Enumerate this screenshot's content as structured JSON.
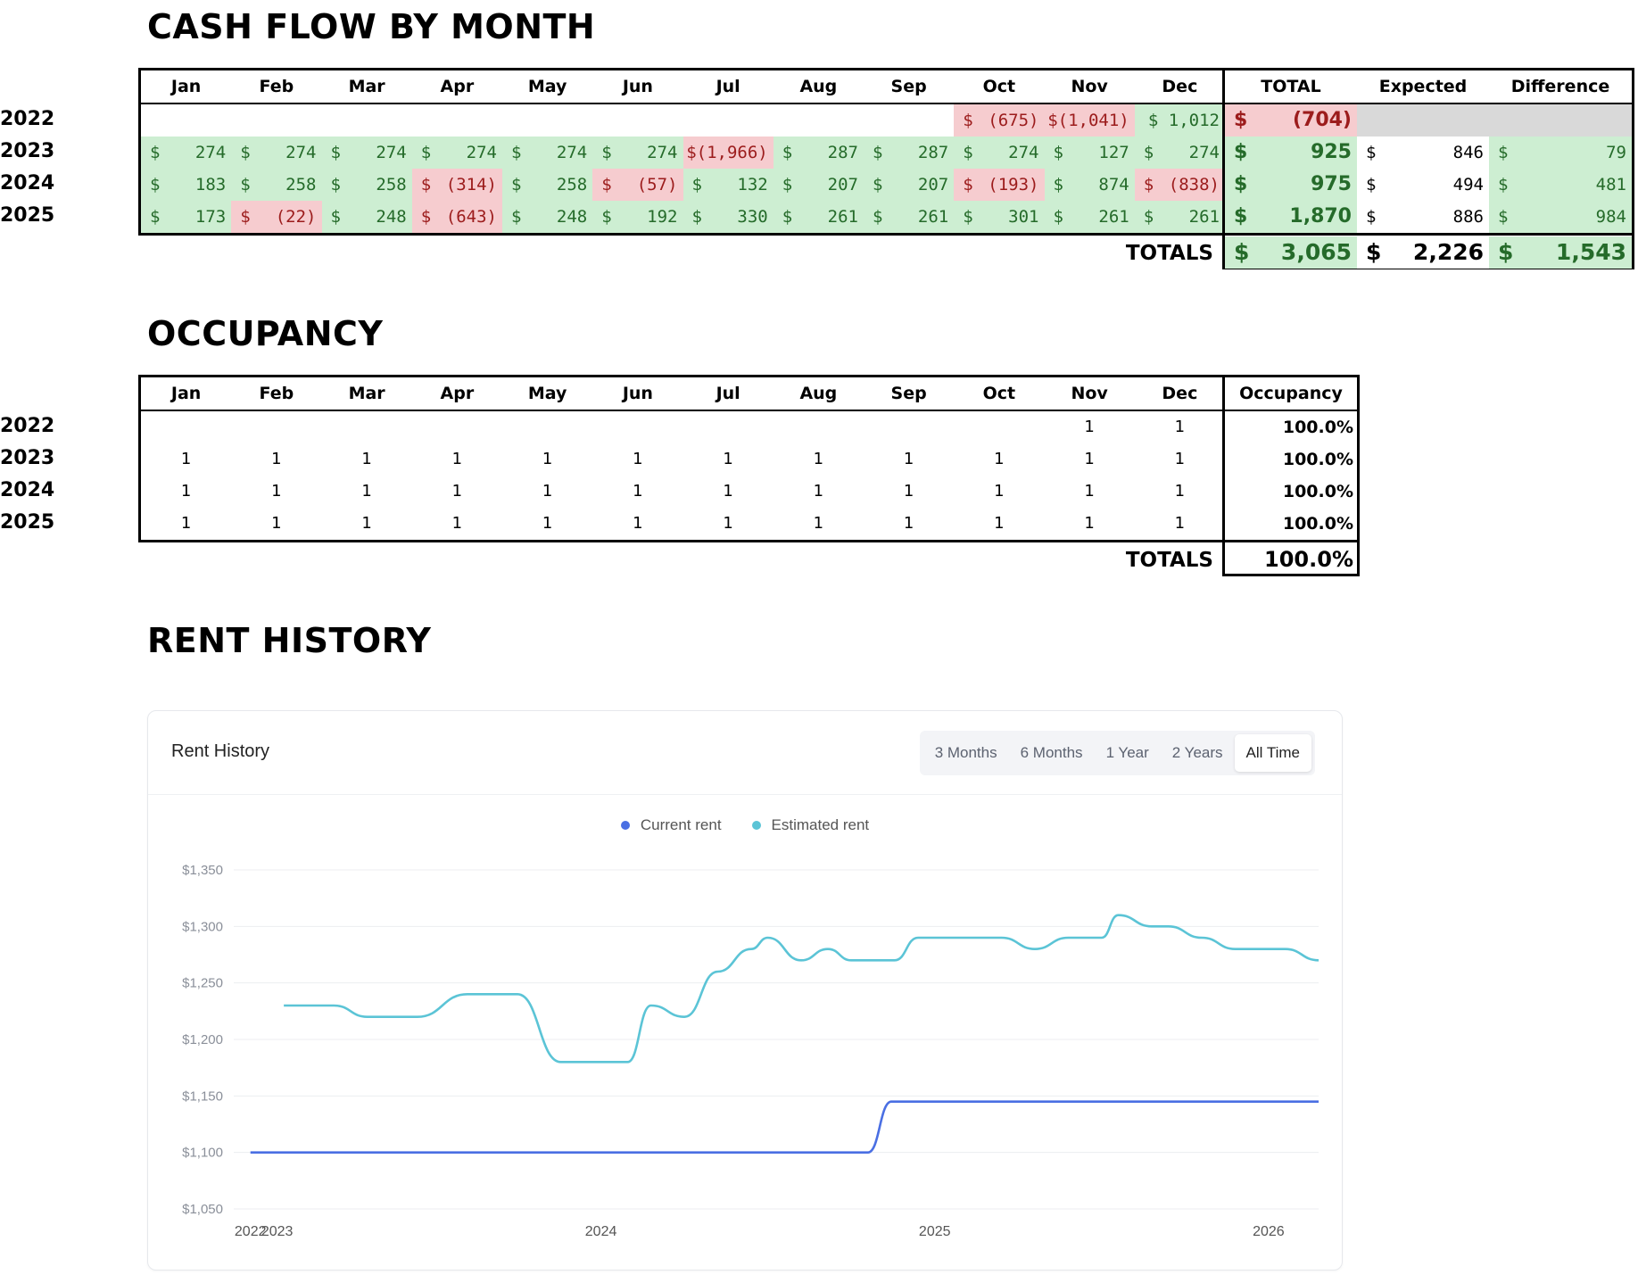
{
  "cashflow": {
    "title": "CASH FLOW BY MONTH",
    "months": [
      "Jan",
      "Feb",
      "Mar",
      "Apr",
      "May",
      "Jun",
      "Jul",
      "Aug",
      "Sep",
      "Oct",
      "Nov",
      "Dec"
    ],
    "summary_headers": [
      "TOTAL",
      "Expected",
      "Difference"
    ],
    "rows": [
      {
        "year": "2022",
        "cells": [
          null,
          null,
          null,
          null,
          null,
          null,
          null,
          null,
          null,
          {
            "sym": "$",
            "amt": "(675)",
            "s": "neg"
          },
          {
            "sym": "",
            "amt": "$(1,041)",
            "s": "neg"
          },
          {
            "sym": "",
            "amt": "$ 1,012",
            "s": "pos"
          }
        ],
        "total": {
          "sym": "$",
          "amt": "(704)",
          "s": "neg"
        },
        "expected": {
          "sym": "",
          "amt": "",
          "s": "grey"
        },
        "difference": {
          "sym": "",
          "amt": "",
          "s": "grey"
        }
      },
      {
        "year": "2023",
        "cells": [
          {
            "sym": "$",
            "amt": "274",
            "s": "pos"
          },
          {
            "sym": "$",
            "amt": "274",
            "s": "pos"
          },
          {
            "sym": "$",
            "amt": "274",
            "s": "pos"
          },
          {
            "sym": "$",
            "amt": "274",
            "s": "pos"
          },
          {
            "sym": "$",
            "amt": "274",
            "s": "pos"
          },
          {
            "sym": "$",
            "amt": "274",
            "s": "pos"
          },
          {
            "sym": "",
            "amt": "$(1,966)",
            "s": "neg"
          },
          {
            "sym": "$",
            "amt": "287",
            "s": "pos"
          },
          {
            "sym": "$",
            "amt": "287",
            "s": "pos"
          },
          {
            "sym": "$",
            "amt": "274",
            "s": "pos"
          },
          {
            "sym": "$",
            "amt": "127",
            "s": "pos"
          },
          {
            "sym": "$",
            "amt": "274",
            "s": "pos"
          }
        ],
        "total": {
          "sym": "$",
          "amt": "925",
          "s": "pos"
        },
        "expected": {
          "sym": "$",
          "amt": "846",
          "s": "plain"
        },
        "difference": {
          "sym": "$",
          "amt": "79",
          "s": "pos"
        }
      },
      {
        "year": "2024",
        "cells": [
          {
            "sym": "$",
            "amt": "183",
            "s": "pos"
          },
          {
            "sym": "$",
            "amt": "258",
            "s": "pos"
          },
          {
            "sym": "$",
            "amt": "258",
            "s": "pos"
          },
          {
            "sym": "$",
            "amt": "(314)",
            "s": "neg"
          },
          {
            "sym": "$",
            "amt": "258",
            "s": "pos"
          },
          {
            "sym": "$",
            "amt": "(57)",
            "s": "neg"
          },
          {
            "sym": "$",
            "amt": "132",
            "s": "pos"
          },
          {
            "sym": "$",
            "amt": "207",
            "s": "pos"
          },
          {
            "sym": "$",
            "amt": "207",
            "s": "pos"
          },
          {
            "sym": "$",
            "amt": "(193)",
            "s": "neg"
          },
          {
            "sym": "$",
            "amt": "874",
            "s": "pos"
          },
          {
            "sym": "$",
            "amt": "(838)",
            "s": "neg"
          }
        ],
        "total": {
          "sym": "$",
          "amt": "975",
          "s": "pos"
        },
        "expected": {
          "sym": "$",
          "amt": "494",
          "s": "plain"
        },
        "difference": {
          "sym": "$",
          "amt": "481",
          "s": "pos"
        }
      },
      {
        "year": "2025",
        "cells": [
          {
            "sym": "$",
            "amt": "173",
            "s": "pos"
          },
          {
            "sym": "$",
            "amt": "(22)",
            "s": "neg"
          },
          {
            "sym": "$",
            "amt": "248",
            "s": "pos"
          },
          {
            "sym": "$",
            "amt": "(643)",
            "s": "neg"
          },
          {
            "sym": "$",
            "amt": "248",
            "s": "pos"
          },
          {
            "sym": "$",
            "amt": "192",
            "s": "pos"
          },
          {
            "sym": "$",
            "amt": "330",
            "s": "pos"
          },
          {
            "sym": "$",
            "amt": "261",
            "s": "pos"
          },
          {
            "sym": "$",
            "amt": "261",
            "s": "pos"
          },
          {
            "sym": "$",
            "amt": "301",
            "s": "pos"
          },
          {
            "sym": "$",
            "amt": "261",
            "s": "pos"
          },
          {
            "sym": "$",
            "amt": "261",
            "s": "pos"
          }
        ],
        "total": {
          "sym": "$",
          "amt": "1,870",
          "s": "pos"
        },
        "expected": {
          "sym": "$",
          "amt": "886",
          "s": "plain"
        },
        "difference": {
          "sym": "$",
          "amt": "984",
          "s": "pos"
        }
      }
    ],
    "totals_label": "TOTALS",
    "totals": {
      "total": {
        "sym": "$",
        "amt": "3,065"
      },
      "expected": {
        "sym": "$",
        "amt": "2,226"
      },
      "difference": {
        "sym": "$",
        "amt": "1,543"
      }
    }
  },
  "occupancy": {
    "title": "OCCUPANCY",
    "months": [
      "Jan",
      "Feb",
      "Mar",
      "Apr",
      "May",
      "Jun",
      "Jul",
      "Aug",
      "Sep",
      "Oct",
      "Nov",
      "Dec"
    ],
    "summary_header": "Occupancy",
    "rows": [
      {
        "year": "2022",
        "values": [
          "",
          "",
          "",
          "",
          "",
          "",
          "",
          "",
          "",
          "",
          "1",
          "1"
        ],
        "pct": "100.0%"
      },
      {
        "year": "2023",
        "values": [
          "1",
          "1",
          "1",
          "1",
          "1",
          "1",
          "1",
          "1",
          "1",
          "1",
          "1",
          "1"
        ],
        "pct": "100.0%"
      },
      {
        "year": "2024",
        "values": [
          "1",
          "1",
          "1",
          "1",
          "1",
          "1",
          "1",
          "1",
          "1",
          "1",
          "1",
          "1"
        ],
        "pct": "100.0%"
      },
      {
        "year": "2025",
        "values": [
          "1",
          "1",
          "1",
          "1",
          "1",
          "1",
          "1",
          "1",
          "1",
          "1",
          "1",
          "1"
        ],
        "pct": "100.0%"
      }
    ],
    "totals_label": "TOTALS",
    "totals_value": "100.0%"
  },
  "rent_history": {
    "section_title": "RENT HISTORY",
    "card_title": "Rent History",
    "ranges": [
      "3 Months",
      "6 Months",
      "1 Year",
      "2 Years",
      "All Time"
    ],
    "active_range": "All Time",
    "colors": {
      "current": "#4a6fe3",
      "estimated": "#5bc4d6"
    }
  },
  "chart_data": {
    "type": "line",
    "title": "Rent History",
    "xlabel": "",
    "ylabel": "",
    "ylim": [
      1050,
      1350
    ],
    "y_ticks": [
      1050,
      1100,
      1150,
      1200,
      1250,
      1300,
      1350
    ],
    "y_tick_labels": [
      "$1,050",
      "$1,100",
      "$1,150",
      "$1,200",
      "$1,250",
      "$1,300",
      "$1,350"
    ],
    "xlim": [
      2022.9,
      2026.15
    ],
    "x_ticks": [
      {
        "label": "2022",
        "value": 2022.95
      },
      {
        "label": "2023",
        "value": 2023.03
      },
      {
        "label": "2024",
        "value": 2024.0
      },
      {
        "label": "2025",
        "value": 2025.0
      },
      {
        "label": "2026",
        "value": 2026.0
      }
    ],
    "legend_position": "top-center",
    "series": [
      {
        "name": "Current rent",
        "x": [
          2022.95,
          2024.8,
          2024.87,
          2026.15
        ],
        "y": [
          1100,
          1100,
          1145,
          1145
        ]
      },
      {
        "name": "Estimated rent",
        "x": [
          2023.05,
          2023.2,
          2023.3,
          2023.45,
          2023.6,
          2023.75,
          2023.88,
          2024.08,
          2024.15,
          2024.25,
          2024.35,
          2024.45,
          2024.5,
          2024.6,
          2024.68,
          2024.75,
          2024.8,
          2024.88,
          2024.95,
          2025.0,
          2025.1,
          2025.2,
          2025.3,
          2025.4,
          2025.5,
          2025.55,
          2025.65,
          2025.7,
          2025.8,
          2025.9,
          2025.95,
          2026.05,
          2026.15
        ],
        "y": [
          1230,
          1230,
          1220,
          1220,
          1240,
          1240,
          1180,
          1180,
          1230,
          1220,
          1260,
          1280,
          1290,
          1270,
          1280,
          1270,
          1270,
          1270,
          1290,
          1290,
          1290,
          1290,
          1280,
          1290,
          1290,
          1310,
          1300,
          1300,
          1290,
          1280,
          1280,
          1280,
          1270
        ]
      }
    ]
  }
}
